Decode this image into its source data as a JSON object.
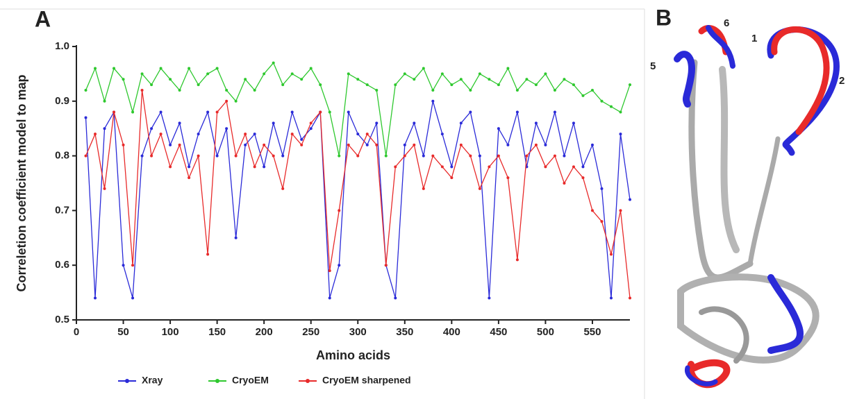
{
  "panels": [
    "A",
    "B"
  ],
  "structure_labels": [
    "6",
    "1",
    "5",
    "2"
  ],
  "chart_data": {
    "type": "line",
    "xlabel": "Amino acids",
    "ylabel": "Correletion coefficient model to map",
    "x": [
      10,
      20,
      30,
      40,
      50,
      60,
      70,
      80,
      90,
      100,
      110,
      120,
      130,
      140,
      150,
      160,
      170,
      180,
      190,
      200,
      210,
      220,
      230,
      240,
      250,
      260,
      270,
      280,
      290,
      300,
      310,
      320,
      330,
      340,
      350,
      360,
      370,
      380,
      390,
      400,
      410,
      420,
      430,
      440,
      450,
      460,
      470,
      480,
      490,
      500,
      510,
      520,
      530,
      540,
      550,
      560,
      570,
      580,
      590
    ],
    "series": [
      {
        "name": "Xray",
        "color": "#2a2ad8",
        "values": [
          0.87,
          0.54,
          0.85,
          0.88,
          0.6,
          0.54,
          0.8,
          0.85,
          0.88,
          0.82,
          0.86,
          0.78,
          0.84,
          0.88,
          0.8,
          0.85,
          0.65,
          0.82,
          0.84,
          0.78,
          0.86,
          0.8,
          0.88,
          0.83,
          0.85,
          0.88,
          0.54,
          0.6,
          0.88,
          0.84,
          0.82,
          0.86,
          0.6,
          0.54,
          0.82,
          0.86,
          0.8,
          0.9,
          0.84,
          0.78,
          0.86,
          0.88,
          0.8,
          0.54,
          0.85,
          0.82,
          0.88,
          0.78,
          0.86,
          0.82,
          0.88,
          0.8,
          0.86,
          0.78,
          0.82,
          0.74,
          0.54,
          0.84,
          0.72
        ]
      },
      {
        "name": "CryoEM",
        "color": "#2ec82e",
        "values": [
          0.92,
          0.96,
          0.9,
          0.96,
          0.94,
          0.88,
          0.95,
          0.93,
          0.96,
          0.94,
          0.92,
          0.96,
          0.93,
          0.95,
          0.96,
          0.92,
          0.9,
          0.94,
          0.92,
          0.95,
          0.97,
          0.93,
          0.95,
          0.94,
          0.96,
          0.93,
          0.88,
          0.8,
          0.95,
          0.94,
          0.93,
          0.92,
          0.8,
          0.93,
          0.95,
          0.94,
          0.96,
          0.92,
          0.95,
          0.93,
          0.94,
          0.92,
          0.95,
          0.94,
          0.93,
          0.96,
          0.92,
          0.94,
          0.93,
          0.95,
          0.92,
          0.94,
          0.93,
          0.91,
          0.92,
          0.9,
          0.89,
          0.88,
          0.93
        ]
      },
      {
        "name": "CryoEM sharpened",
        "color": "#e82a2a",
        "values": [
          0.8,
          0.84,
          0.74,
          0.88,
          0.82,
          0.6,
          0.92,
          0.8,
          0.84,
          0.78,
          0.82,
          0.76,
          0.8,
          0.62,
          0.88,
          0.9,
          0.8,
          0.84,
          0.78,
          0.82,
          0.8,
          0.74,
          0.84,
          0.82,
          0.86,
          0.88,
          0.59,
          0.7,
          0.82,
          0.8,
          0.84,
          0.82,
          0.6,
          0.78,
          0.8,
          0.82,
          0.74,
          0.8,
          0.78,
          0.76,
          0.82,
          0.8,
          0.74,
          0.78,
          0.8,
          0.76,
          0.61,
          0.8,
          0.82,
          0.78,
          0.8,
          0.75,
          0.78,
          0.76,
          0.7,
          0.68,
          0.62,
          0.7,
          0.54
        ]
      }
    ],
    "xlim": [
      0,
      590
    ],
    "xticks": [
      0,
      50,
      100,
      150,
      200,
      250,
      300,
      350,
      400,
      450,
      500,
      550
    ],
    "ylim": [
      0.5,
      1.0
    ],
    "yticks": [
      0.5,
      0.6,
      0.7,
      0.8,
      0.9,
      {
        "value": 1.0,
        "label": "1.0"
      }
    ],
    "legend": "bottom"
  }
}
